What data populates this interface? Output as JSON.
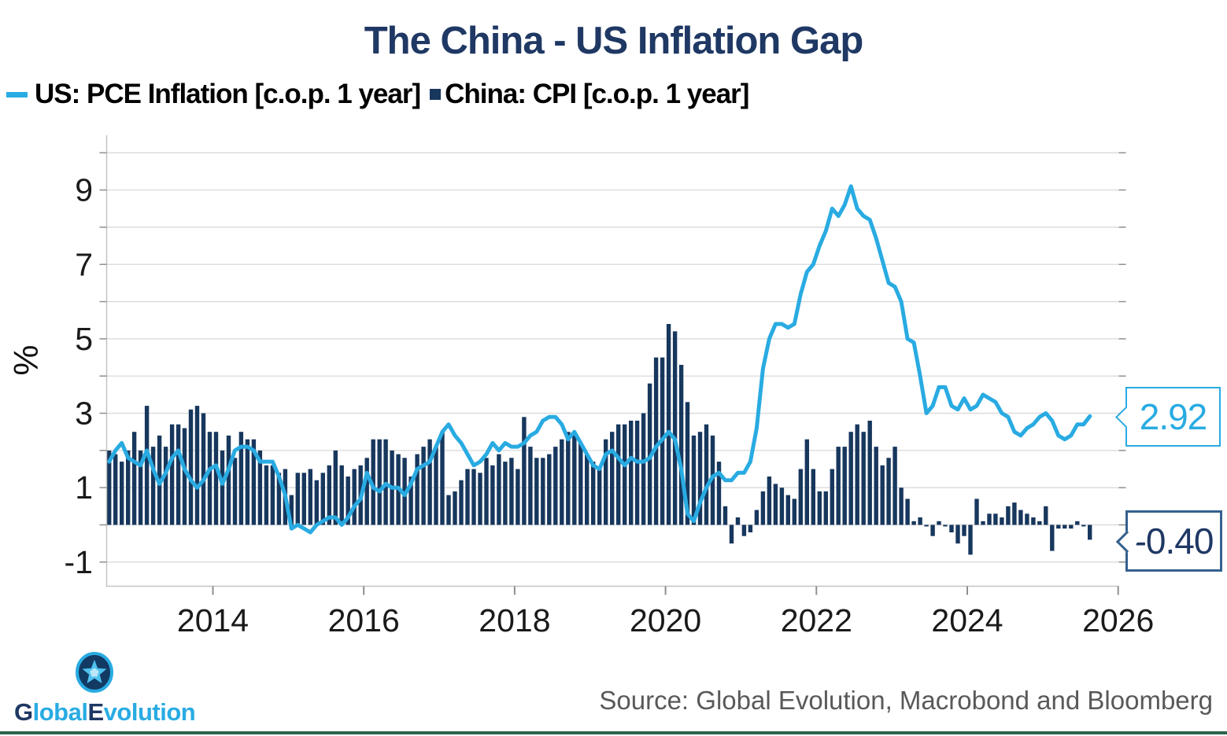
{
  "title": "The China - US Inflation Gap",
  "legend": [
    {
      "label": "US: PCE Inflation [c.o.p. 1 year]",
      "marker": "line-dash",
      "color": "#29ABE2"
    },
    {
      "label": "China: CPI [c.o.p. 1 year]",
      "marker": "square",
      "color": "#17375D"
    }
  ],
  "callouts": [
    {
      "value": "2.92",
      "series": "US: PCE Inflation",
      "color": "#29ABE2"
    },
    {
      "value": "-0.40",
      "series": "China: CPI",
      "color": "#1F3864"
    }
  ],
  "source": "Source: Global Evolution, Macrobond and Bloomberg",
  "logo": {
    "parts": [
      "G",
      "lobal",
      "E",
      "volution"
    ],
    "icon": "star-in-circle"
  },
  "colors": {
    "title": "#1F3864",
    "line": "#29ABE2",
    "bar": "#17375D",
    "gridline": "#D9D9D9",
    "axis": "#C3C3C3",
    "tick": "#8F8F8F",
    "tick_label": "#1A1A1A",
    "source_text": "#595959",
    "bottom_rule": "#2E644C"
  },
  "chart_data": {
    "type": "mixed",
    "title": "The China - US Inflation Gap",
    "ylabel": "%",
    "ylim": [
      -1.65,
      10.4
    ],
    "grid": {
      "min": -1,
      "max": 10,
      "step": 1,
      "orientation": "horizontal"
    },
    "x_tick_labels": [
      2014,
      2016,
      2018,
      2020,
      2022,
      2024,
      2026
    ],
    "y_tick_labels": [
      9,
      7,
      5,
      3,
      1,
      -1
    ],
    "start": "2012-08",
    "frequency": "monthly",
    "legend_position": "top-left",
    "series": [
      {
        "name": "US: PCE Inflation [c.o.p. 1 year]",
        "type": "line",
        "color": "#29ABE2",
        "last_value_label": "2.92",
        "values": [
          1.7,
          2.0,
          2.2,
          1.8,
          1.7,
          1.6,
          2.0,
          1.5,
          1.1,
          1.4,
          1.8,
          2.0,
          1.5,
          1.2,
          1.0,
          1.2,
          1.5,
          1.6,
          1.1,
          1.5,
          2.0,
          2.1,
          2.1,
          2.0,
          1.7,
          1.7,
          1.7,
          1.3,
          0.8,
          -0.1,
          0.0,
          -0.1,
          -0.2,
          0.0,
          0.1,
          0.2,
          0.2,
          0.0,
          0.2,
          0.5,
          0.7,
          1.4,
          1.0,
          0.9,
          1.1,
          1.0,
          1.0,
          0.8,
          1.1,
          1.5,
          1.6,
          1.7,
          2.1,
          2.5,
          2.7,
          2.4,
          2.2,
          1.9,
          1.6,
          1.7,
          1.9,
          2.2,
          2.0,
          2.2,
          2.1,
          2.1,
          2.2,
          2.4,
          2.5,
          2.8,
          2.9,
          2.9,
          2.7,
          2.3,
          2.5,
          2.2,
          1.9,
          1.6,
          1.5,
          1.9,
          2.0,
          1.8,
          1.6,
          1.8,
          1.7,
          1.7,
          1.8,
          2.1,
          2.3,
          2.5,
          2.3,
          1.5,
          0.3,
          0.1,
          0.6,
          1.0,
          1.3,
          1.4,
          1.2,
          1.2,
          1.4,
          1.4,
          1.7,
          2.6,
          4.2,
          5.0,
          5.4,
          5.4,
          5.3,
          5.4,
          6.2,
          6.8,
          7.0,
          7.5,
          7.9,
          8.5,
          8.3,
          8.6,
          9.1,
          8.5,
          8.3,
          8.2,
          7.7,
          7.1,
          6.5,
          6.4,
          6.0,
          5.0,
          4.9,
          4.0,
          3.0,
          3.2,
          3.7,
          3.7,
          3.2,
          3.1,
          3.4,
          3.1,
          3.2,
          3.5,
          3.4,
          3.3,
          3.0,
          2.9,
          2.5,
          2.4,
          2.6,
          2.7,
          2.9,
          3.0,
          2.8,
          2.4,
          2.3,
          2.4,
          2.7,
          2.7,
          2.92
        ]
      },
      {
        "name": "China: CPI [c.o.p. 1 year]",
        "type": "bar",
        "color": "#17375D",
        "last_value_label": "-0.40",
        "values": [
          2.0,
          1.9,
          1.7,
          2.0,
          2.5,
          2.0,
          3.2,
          2.1,
          2.4,
          2.1,
          2.7,
          2.7,
          2.6,
          3.1,
          3.2,
          3.0,
          2.5,
          2.5,
          2.0,
          2.4,
          1.8,
          2.5,
          2.3,
          2.3,
          2.0,
          1.6,
          1.6,
          1.4,
          1.5,
          0.8,
          1.4,
          1.4,
          1.5,
          1.2,
          1.4,
          1.6,
          2.0,
          1.6,
          1.3,
          1.5,
          1.6,
          1.8,
          2.3,
          2.3,
          2.3,
          2.0,
          1.9,
          1.8,
          1.3,
          1.9,
          2.1,
          2.3,
          2.1,
          2.5,
          0.8,
          0.9,
          1.2,
          1.5,
          1.5,
          1.4,
          1.8,
          1.6,
          1.9,
          1.7,
          1.8,
          1.5,
          2.9,
          2.1,
          1.8,
          1.8,
          1.9,
          2.1,
          2.3,
          2.5,
          2.5,
          2.2,
          1.9,
          1.7,
          1.5,
          2.3,
          2.5,
          2.7,
          2.7,
          2.8,
          2.8,
          3.0,
          3.8,
          4.5,
          4.5,
          5.4,
          5.2,
          4.3,
          3.3,
          2.4,
          2.5,
          2.7,
          2.4,
          1.7,
          0.5,
          -0.5,
          0.2,
          -0.3,
          -0.2,
          0.4,
          0.9,
          1.3,
          1.1,
          1.0,
          0.8,
          0.7,
          1.5,
          2.3,
          1.5,
          0.9,
          0.9,
          1.5,
          2.1,
          2.1,
          2.5,
          2.7,
          2.5,
          2.8,
          2.1,
          1.6,
          1.8,
          2.1,
          1.0,
          0.7,
          0.1,
          0.2,
          0.0,
          -0.3,
          0.1,
          0.0,
          -0.2,
          -0.5,
          -0.3,
          -0.8,
          0.7,
          0.1,
          0.3,
          0.3,
          0.2,
          0.5,
          0.6,
          0.4,
          0.3,
          0.2,
          0.1,
          0.5,
          -0.7,
          -0.1,
          -0.1,
          -0.1,
          0.1,
          0.0,
          -0.4
        ]
      }
    ]
  }
}
